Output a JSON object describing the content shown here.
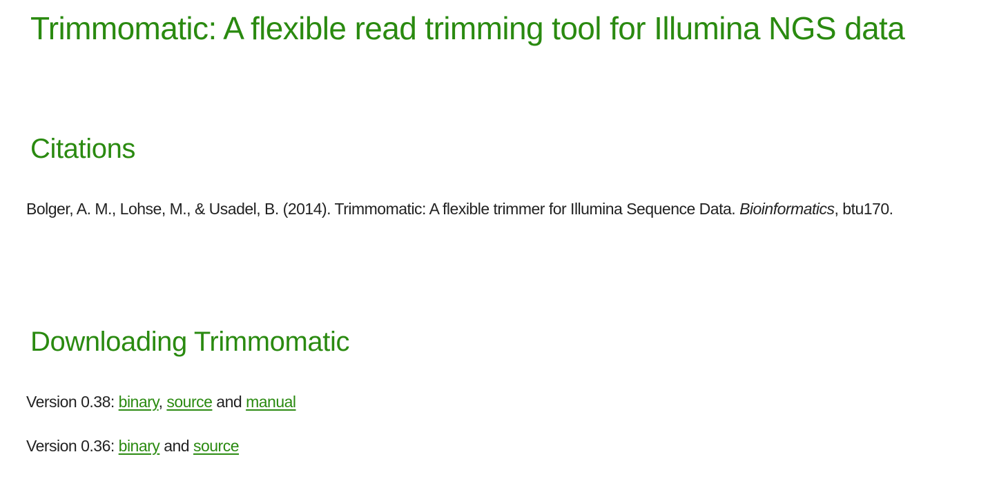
{
  "page_title": "Trimmomatic: A flexible read trimming tool for Illumina NGS data",
  "citations": {
    "heading": "Citations",
    "text_before": "Bolger, A. M., Lohse, M., & Usadel, B. (2014). Trimmomatic: A flexible trimmer for Illumina Sequence Data. ",
    "journal": "Bioinformatics",
    "text_after": ", btu170."
  },
  "downloading": {
    "heading": "Downloading Trimmomatic",
    "v038": {
      "prefix": "Version 0.38: ",
      "binary_label": "binary",
      "sep1": ", ",
      "source_label": "source",
      "sep2": " and ",
      "manual_label": "manual"
    },
    "v036": {
      "prefix": "Version 0.36: ",
      "binary_label": "binary",
      "sep1": " and ",
      "source_label": "source"
    }
  },
  "colors": {
    "accent": "#2a8a10",
    "text": "#222222",
    "background": "#ffffff"
  }
}
